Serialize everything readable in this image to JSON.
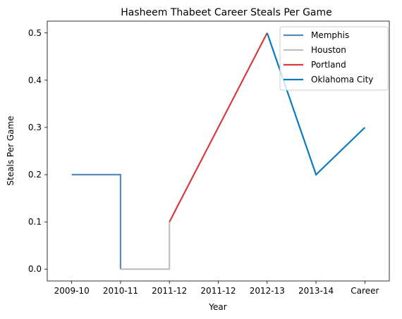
{
  "chart_data": {
    "type": "line",
    "title": "Hasheem Thabeet Career Steals Per Game",
    "xlabel": "Year",
    "ylabel": "Steals Per Game",
    "categories": [
      "2009-10",
      "2010-11",
      "2011-12",
      "2011-12",
      "2012-13",
      "2013-14",
      "Career"
    ],
    "ylim": [
      -0.025,
      0.525
    ],
    "yticks": [
      0.0,
      0.1,
      0.2,
      0.3,
      0.4,
      0.5
    ],
    "ytick_labels": [
      "0.0",
      "0.1",
      "0.2",
      "0.3",
      "0.4",
      "0.5"
    ],
    "grid": false,
    "legend_position": "top-right",
    "series": [
      {
        "name": "Memphis",
        "color": "#5b8bb9",
        "points": [
          {
            "x": "2009-10",
            "y": 0.2
          },
          {
            "x": "2010-11",
            "y": 0.2
          },
          {
            "x": "2010-11",
            "y": 0.0
          }
        ]
      },
      {
        "name": "Houston",
        "color": "#bfbfbf",
        "points": [
          {
            "x": "2010-11",
            "y": 0.0
          },
          {
            "x": "2011-12",
            "y": 0.0
          },
          {
            "x": "2011-12",
            "y": 0.1
          }
        ]
      },
      {
        "name": "Portland",
        "color": "#d83b3e",
        "points": [
          {
            "x": "2011-12",
            "y": 0.1
          },
          {
            "x": "2012-13",
            "y": 0.5
          }
        ]
      },
      {
        "name": "Oklahoma City",
        "color": "#0a7bc1",
        "points": [
          {
            "x": "2012-13",
            "y": 0.5
          },
          {
            "x": "2013-14",
            "y": 0.2
          },
          {
            "x": "Career",
            "y": 0.3
          }
        ]
      }
    ]
  }
}
